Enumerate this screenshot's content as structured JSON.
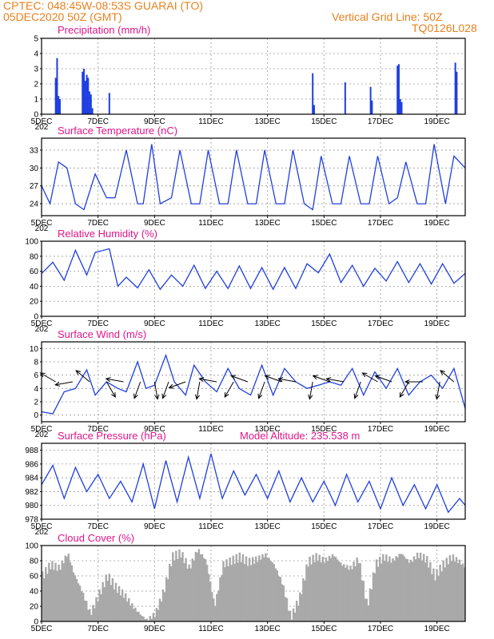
{
  "header": {
    "line1": "CPTEC:   048:45W-08:53S   GUARAI (TO)",
    "line2": "05DEC2020 50Z (GMT)",
    "grid_note": "Vertical Grid Line: 50Z",
    "code": "TQ0126L028"
  },
  "colors": {
    "header": "#e8811e",
    "title": "#e0178a",
    "line": "#1f3fe0",
    "cloud": "#a9a9a9"
  },
  "x_axis": {
    "labels": [
      "5DEC",
      "7DEC",
      "9DEC",
      "11DEC",
      "13DEC",
      "15DEC",
      "17DEC",
      "19DEC"
    ],
    "label_days": [
      5,
      7,
      9,
      11,
      13,
      15,
      17,
      19
    ],
    "range_days": [
      5,
      20
    ],
    "year_fragment": "202"
  },
  "chart_data": [
    {
      "type": "bar",
      "title": "Precipitation (mm/h)",
      "ylim": [
        0,
        5
      ],
      "yticks": [
        "0",
        "1",
        "2",
        "3",
        "4",
        "5"
      ],
      "x_days": [
        5.5,
        5.55,
        5.6,
        5.65,
        6.45,
        6.5,
        6.55,
        6.6,
        6.65,
        6.7,
        6.75,
        6.8,
        7.4,
        14.6,
        14.65,
        15.75,
        16.65,
        16.7,
        17.6,
        17.65,
        17.7,
        17.75,
        19.65,
        19.7
      ],
      "values": [
        2.4,
        3.7,
        1.2,
        1.0,
        2.8,
        3.0,
        2.2,
        2.6,
        2.4,
        1.5,
        1.3,
        0.4,
        1.4,
        2.7,
        0.6,
        2.1,
        1.8,
        0.9,
        3.2,
        3.3,
        1.0,
        0.8,
        3.4,
        2.8
      ]
    },
    {
      "type": "line",
      "title": "Surface Temperature (nC)",
      "ylim": [
        22,
        35
      ],
      "yticks": [
        "24",
        "27",
        "30",
        "33"
      ],
      "x_days": [
        5.0,
        5.3,
        5.6,
        5.9,
        6.2,
        6.5,
        6.9,
        7.3,
        7.6,
        8.0,
        8.4,
        8.6,
        8.9,
        9.2,
        9.6,
        9.9,
        10.3,
        10.6,
        10.9,
        11.3,
        11.6,
        11.9,
        12.3,
        12.6,
        12.9,
        13.3,
        13.6,
        13.9,
        14.3,
        14.6,
        14.9,
        15.3,
        15.6,
        15.9,
        16.3,
        16.6,
        16.9,
        17.3,
        17.6,
        17.9,
        18.3,
        18.6,
        18.9,
        19.3,
        19.6,
        20.0
      ],
      "values": [
        27,
        24,
        31,
        30,
        24,
        23,
        29,
        25,
        25,
        33,
        24,
        24,
        34,
        24,
        25,
        33,
        24,
        24,
        33,
        24,
        24,
        33,
        24,
        24,
        33,
        24,
        24,
        33,
        24,
        23,
        32,
        24,
        24,
        32,
        24,
        24,
        32,
        24,
        25,
        31,
        24,
        24,
        34,
        24,
        32,
        30
      ]
    },
    {
      "type": "line",
      "title": "Relative Humidity (%)",
      "ylim": [
        0,
        100
      ],
      "yticks": [
        "0",
        "20",
        "40",
        "60",
        "80",
        "100"
      ],
      "x_days": [
        5.0,
        5.4,
        5.8,
        6.2,
        6.6,
        6.9,
        7.4,
        7.7,
        8.0,
        8.4,
        8.8,
        9.2,
        9.6,
        10.0,
        10.4,
        10.8,
        11.2,
        11.6,
        12.0,
        12.4,
        12.8,
        13.2,
        13.6,
        14.0,
        14.4,
        14.8,
        15.2,
        15.6,
        16.0,
        16.4,
        16.8,
        17.2,
        17.6,
        18.0,
        18.4,
        18.8,
        19.2,
        19.6,
        20.0
      ],
      "values": [
        57,
        72,
        48,
        88,
        55,
        85,
        90,
        40,
        52,
        38,
        62,
        36,
        55,
        40,
        68,
        37,
        60,
        37,
        67,
        37,
        65,
        36,
        65,
        37,
        70,
        58,
        83,
        45,
        68,
        40,
        64,
        47,
        73,
        45,
        70,
        43,
        70,
        44,
        57
      ]
    },
    {
      "type": "line",
      "title": "Surface Wind (m/s)",
      "ylim": [
        -1,
        11
      ],
      "yticks": [
        "0",
        "2",
        "4",
        "6",
        "8",
        "10"
      ],
      "x_days": [
        5.0,
        5.4,
        5.8,
        6.2,
        6.6,
        6.9,
        7.3,
        7.7,
        8.0,
        8.4,
        8.7,
        9.0,
        9.4,
        9.7,
        10.1,
        10.4,
        10.8,
        11.2,
        11.6,
        12.0,
        12.4,
        12.8,
        13.2,
        13.6,
        14.0,
        14.4,
        14.8,
        15.2,
        15.6,
        16.0,
        16.4,
        16.8,
        17.2,
        17.6,
        18.0,
        18.4,
        18.8,
        19.2,
        19.6,
        20.0
      ],
      "values": [
        0.5,
        0.2,
        3.5,
        4.0,
        6.8,
        3.0,
        5.0,
        4.0,
        3.5,
        8.0,
        4.0,
        4.5,
        9.0,
        5.0,
        3.0,
        7.5,
        5.0,
        3.5,
        7.0,
        4.0,
        3.0,
        7.5,
        3.0,
        7.0,
        5.0,
        4.0,
        4.5,
        5.0,
        4.5,
        7.0,
        3.0,
        6.5,
        4.0,
        7.0,
        3.0,
        5.0,
        6.0,
        4.0,
        7.0,
        1.0
      ]
    },
    {
      "type": "line",
      "title": "Surface Pressure (hPa)",
      "annotation": "Model Altitude: 235.538 m",
      "ylim": [
        978,
        989
      ],
      "yticks": [
        "978",
        "980",
        "982",
        "984",
        "986",
        "988"
      ],
      "x_days": [
        5.0,
        5.4,
        5.8,
        6.2,
        6.6,
        7.0,
        7.4,
        7.8,
        8.2,
        8.6,
        9.0,
        9.4,
        9.8,
        10.2,
        10.6,
        11.0,
        11.4,
        11.8,
        12.2,
        12.6,
        13.0,
        13.4,
        13.8,
        14.2,
        14.6,
        15.0,
        15.4,
        15.8,
        16.2,
        16.6,
        17.0,
        17.4,
        17.8,
        18.2,
        18.6,
        19.0,
        19.4,
        19.8,
        20.0
      ],
      "values": [
        983,
        985.8,
        981,
        985.5,
        982,
        984.5,
        981,
        983.5,
        980.5,
        986,
        979.5,
        986.5,
        980.5,
        987,
        981,
        987.5,
        981,
        985,
        981.5,
        984.5,
        981,
        985,
        980.5,
        984,
        980.5,
        983.5,
        980,
        984.5,
        980.5,
        983.5,
        979.5,
        984,
        980,
        983,
        979.5,
        983,
        979,
        981,
        980
      ]
    },
    {
      "type": "area",
      "title": "Cloud Cover (%)",
      "ylim": [
        0,
        100
      ],
      "yticks": [
        "0",
        "20",
        "40",
        "60",
        "80",
        "100"
      ],
      "x_days": [
        5.0,
        5.3,
        5.6,
        5.9,
        6.1,
        6.4,
        6.7,
        7.0,
        7.3,
        7.6,
        7.9,
        8.2,
        8.5,
        8.7,
        9.0,
        9.3,
        9.6,
        9.9,
        10.2,
        10.5,
        10.8,
        11.1,
        11.4,
        11.7,
        12.0,
        12.3,
        12.6,
        12.9,
        13.2,
        13.5,
        13.8,
        14.1,
        14.4,
        14.7,
        15.0,
        15.3,
        15.6,
        15.9,
        16.2,
        16.5,
        16.8,
        17.1,
        17.4,
        17.7,
        18.0,
        18.3,
        18.6,
        18.9,
        19.2,
        19.5,
        19.8,
        20.0
      ],
      "values": [
        60,
        75,
        70,
        90,
        65,
        40,
        10,
        35,
        60,
        45,
        35,
        20,
        8,
        2,
        10,
        40,
        85,
        90,
        70,
        95,
        80,
        20,
        75,
        80,
        85,
        78,
        82,
        88,
        75,
        50,
        5,
        30,
        78,
        85,
        80,
        88,
        75,
        70,
        82,
        20,
        75,
        85,
        80,
        90,
        78,
        88,
        82,
        60,
        75,
        85,
        78,
        70
      ]
    }
  ],
  "wind_vectors": {
    "x_days": [
      5.5,
      6.1,
      6.7,
      7.3,
      7.9,
      8.5,
      9.0,
      9.5,
      10.1,
      10.6,
      11.2,
      11.8,
      12.3,
      12.9,
      13.5,
      14.0,
      14.6,
      15.2,
      15.7,
      16.3,
      16.9,
      17.4,
      18.0,
      18.5,
      19.1,
      19.6
    ],
    "angles_deg": [
      210,
      170,
      220,
      60,
      190,
      110,
      80,
      110,
      160,
      100,
      190,
      120,
      200,
      110,
      200,
      190,
      100,
      200,
      190,
      110,
      210,
      200,
      120,
      180,
      100,
      220
    ]
  }
}
